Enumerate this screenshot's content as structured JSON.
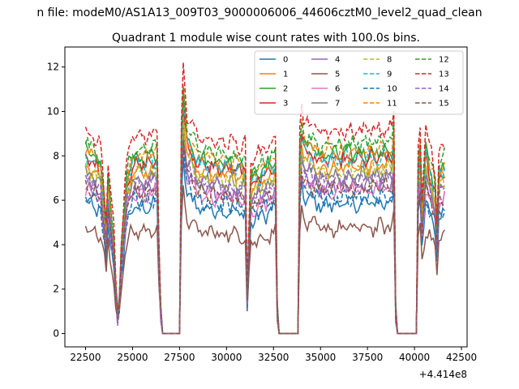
{
  "figure": {
    "suptitle": "n file: modeM0/AS1A13_009T03_9000006006_44606cztM0_level2_quad_clean",
    "title": "Quadrant 1 module wise count rates with 100.0s bins.",
    "x_offset_label": "+4.414e8"
  },
  "chart_data": {
    "type": "line",
    "title": "Quadrant 1 module wise count rates with 100.0s bins.",
    "xlabel": "",
    "ylabel": "",
    "x_offset": 441400000,
    "xlim": [
      21400,
      42800
    ],
    "ylim": [
      -0.6,
      12.9
    ],
    "xticks": [
      22500,
      25000,
      27500,
      30000,
      32500,
      35000,
      37500,
      40000,
      42500
    ],
    "xtick_labels": [
      "22500",
      "25000",
      "27500",
      "30000",
      "32500",
      "35000",
      "37500",
      "40000",
      "42500"
    ],
    "yticks": [
      0,
      2,
      4,
      6,
      8,
      10,
      12
    ],
    "ytick_labels": [
      "0",
      "2",
      "4",
      "6",
      "8",
      "10",
      "12"
    ],
    "grid": false,
    "legend": {
      "placement": "top-right",
      "columns": 4
    },
    "x_start": 22500,
    "bin_seconds": 100,
    "n_points": 192,
    "profile_knots": [
      [
        22500,
        1.0
      ],
      [
        23000,
        0.96
      ],
      [
        23300,
        0.92
      ],
      [
        23650,
        0.5
      ],
      [
        23700,
        0.85
      ],
      [
        24000,
        0.5
      ],
      [
        24150,
        0.15
      ],
      [
        24250,
        0.06
      ],
      [
        24400,
        0.45
      ],
      [
        24700,
        0.86
      ],
      [
        25000,
        0.95
      ],
      [
        26300,
        0.98
      ],
      [
        26450,
        0.2
      ],
      [
        26600,
        0.0
      ],
      [
        27500,
        0.0
      ],
      [
        27550,
        0.85
      ],
      [
        27700,
        1.3
      ],
      [
        27900,
        1.08
      ],
      [
        28500,
        0.96
      ],
      [
        31000,
        0.92
      ],
      [
        31050,
        0.2
      ],
      [
        31150,
        0.25
      ],
      [
        31250,
        0.85
      ],
      [
        32600,
        0.95
      ],
      [
        32650,
        0.3
      ],
      [
        32750,
        0.0
      ],
      [
        33800,
        0.0
      ],
      [
        33850,
        0.8
      ],
      [
        33950,
        1.15
      ],
      [
        34100,
        1.05
      ],
      [
        35000,
        0.98
      ],
      [
        38800,
        1.0
      ],
      [
        38900,
        1.1
      ],
      [
        38950,
        0.3
      ],
      [
        39050,
        0.0
      ],
      [
        40150,
        0.0
      ],
      [
        40200,
        0.9
      ],
      [
        40300,
        1.0
      ],
      [
        40350,
        0.6
      ],
      [
        40600,
        1.0
      ],
      [
        41100,
        0.8
      ],
      [
        41200,
        0.55
      ],
      [
        41300,
        0.9
      ],
      [
        41600,
        0.92
      ],
      [
        41650,
        0.2
      ]
    ],
    "series": [
      {
        "name": "0",
        "color": "#1f77b4",
        "dash": "solid",
        "level": 5.9
      },
      {
        "name": "1",
        "color": "#ff7f0e",
        "dash": "solid",
        "level": 7.6
      },
      {
        "name": "2",
        "color": "#2ca02c",
        "dash": "solid",
        "level": 8.2
      },
      {
        "name": "3",
        "color": "#d62728",
        "dash": "solid",
        "level": 7.9
      },
      {
        "name": "4",
        "color": "#9467bd",
        "dash": "solid",
        "level": 6.8
      },
      {
        "name": "5",
        "color": "#8c564b",
        "dash": "solid",
        "level": 4.8
      },
      {
        "name": "6",
        "color": "#e377c2",
        "dash": "solid",
        "level": 6.5
      },
      {
        "name": "7",
        "color": "#7f7f7f",
        "dash": "solid",
        "level": 7.2
      },
      {
        "name": "8",
        "color": "#bcbd22",
        "dash": "dashed",
        "level": 7.4
      },
      {
        "name": "9",
        "color": "#17becf",
        "dash": "dashed",
        "level": 8.0
      },
      {
        "name": "10",
        "color": "#1f77b4",
        "dash": "dashed",
        "level": 6.2
      },
      {
        "name": "11",
        "color": "#ff7f0e",
        "dash": "dashed",
        "level": 8.3
      },
      {
        "name": "12",
        "color": "#2ca02c",
        "dash": "dashed",
        "level": 8.6
      },
      {
        "name": "13",
        "color": "#d62728",
        "dash": "dashed",
        "level": 9.2
      },
      {
        "name": "14",
        "color": "#9467bd",
        "dash": "dashed",
        "level": 7.0
      },
      {
        "name": "15",
        "color": "#8c564b",
        "dash": "dashed",
        "level": 6.6
      }
    ]
  }
}
